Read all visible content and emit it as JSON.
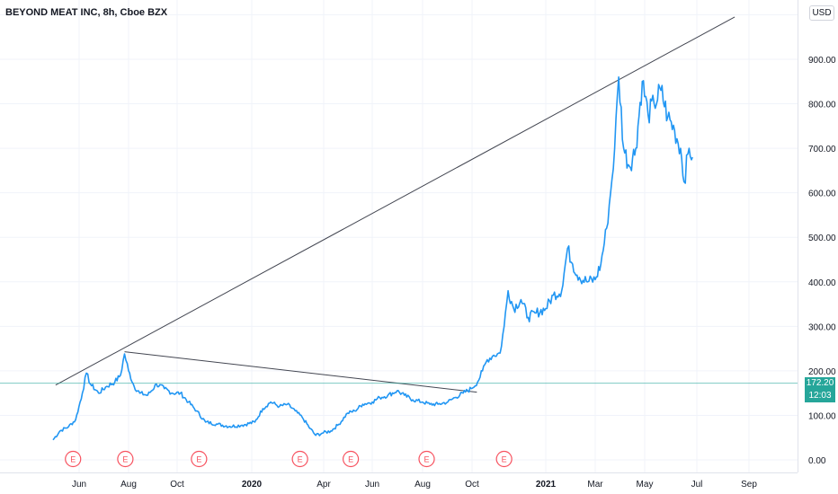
{
  "header": {
    "title": "BEYOND MEAT INC, 8h, Cboe BZX",
    "currency_button": "USD"
  },
  "price_labels": {
    "current_price": "172.20",
    "countdown": "12:03"
  },
  "colors": {
    "price_line": "#2196f3",
    "trendline": "#434651",
    "current_price_line": "#26a69a",
    "earnings_marker": "#f7525f",
    "grid": "#f0f3fa"
  },
  "chart_data": {
    "type": "line",
    "title": "BEYOND MEAT INC, 8h, Cboe BZX",
    "xlabel": "",
    "ylabel": "",
    "ylim": [
      0,
      1000
    ],
    "y_ticks": [
      "900.00",
      "800.00",
      "700.00",
      "600.00",
      "500.00",
      "400.00",
      "300.00",
      "200.00",
      "100.00",
      "0.00"
    ],
    "x_ticks": [
      {
        "label": "Jun",
        "date": "2019-06-01",
        "bold": false
      },
      {
        "label": "Aug",
        "date": "2019-08-01",
        "bold": false
      },
      {
        "label": "Oct",
        "date": "2019-10-01",
        "bold": false
      },
      {
        "label": "2020",
        "date": "2020-01-01",
        "bold": true
      },
      {
        "label": "Apr",
        "date": "2020-04-01",
        "bold": false
      },
      {
        "label": "Jun",
        "date": "2020-06-01",
        "bold": false
      },
      {
        "label": "Aug",
        "date": "2020-08-01",
        "bold": false
      },
      {
        "label": "Oct",
        "date": "2020-10-01",
        "bold": false
      },
      {
        "label": "2021",
        "date": "2021-01-01",
        "bold": true
      },
      {
        "label": "Mar",
        "date": "2021-03-01",
        "bold": false
      },
      {
        "label": "May",
        "date": "2021-05-01",
        "bold": false
      },
      {
        "label": "Jul",
        "date": "2021-07-01",
        "bold": false
      },
      {
        "label": "Sep",
        "date": "2021-09-01",
        "bold": false
      }
    ],
    "series": [
      {
        "values": [
          [
            "2019-05-02",
            45
          ],
          [
            "2019-05-10",
            65
          ],
          [
            "2019-05-20",
            75
          ],
          [
            "2019-05-28",
            90
          ],
          [
            "2019-06-05",
            150
          ],
          [
            "2019-06-10",
            195
          ],
          [
            "2019-06-15",
            170
          ],
          [
            "2019-06-25",
            150
          ],
          [
            "2019-07-05",
            165
          ],
          [
            "2019-07-15",
            175
          ],
          [
            "2019-07-22",
            190
          ],
          [
            "2019-07-27",
            238
          ],
          [
            "2019-08-01",
            200
          ],
          [
            "2019-08-08",
            165
          ],
          [
            "2019-08-15",
            150
          ],
          [
            "2019-08-25",
            145
          ],
          [
            "2019-09-05",
            170
          ],
          [
            "2019-09-15",
            160
          ],
          [
            "2019-09-25",
            150
          ],
          [
            "2019-10-05",
            150
          ],
          [
            "2019-10-15",
            130
          ],
          [
            "2019-10-25",
            110
          ],
          [
            "2019-11-05",
            85
          ],
          [
            "2019-11-20",
            80
          ],
          [
            "2019-12-05",
            75
          ],
          [
            "2019-12-20",
            78
          ],
          [
            "2020-01-05",
            85
          ],
          [
            "2020-01-15",
            115
          ],
          [
            "2020-01-25",
            130
          ],
          [
            "2020-02-05",
            120
          ],
          [
            "2020-02-15",
            125
          ],
          [
            "2020-02-25",
            110
          ],
          [
            "2020-03-05",
            95
          ],
          [
            "2020-03-15",
            70
          ],
          [
            "2020-03-22",
            55
          ],
          [
            "2020-03-30",
            60
          ],
          [
            "2020-04-10",
            65
          ],
          [
            "2020-04-20",
            80
          ],
          [
            "2020-05-01",
            105
          ],
          [
            "2020-05-10",
            110
          ],
          [
            "2020-05-20",
            125
          ],
          [
            "2020-06-01",
            130
          ],
          [
            "2020-06-10",
            140
          ],
          [
            "2020-06-20",
            145
          ],
          [
            "2020-07-01",
            155
          ],
          [
            "2020-07-10",
            145
          ],
          [
            "2020-07-20",
            135
          ],
          [
            "2020-08-01",
            130
          ],
          [
            "2020-08-10",
            125
          ],
          [
            "2020-08-20",
            125
          ],
          [
            "2020-09-01",
            130
          ],
          [
            "2020-09-10",
            140
          ],
          [
            "2020-09-20",
            150
          ],
          [
            "2020-09-30",
            160
          ],
          [
            "2020-10-08",
            175
          ],
          [
            "2020-10-14",
            200
          ],
          [
            "2020-10-20",
            225
          ],
          [
            "2020-10-28",
            235
          ],
          [
            "2020-11-05",
            240
          ],
          [
            "2020-11-10",
            300
          ],
          [
            "2020-11-15",
            380
          ],
          [
            "2020-11-22",
            340
          ],
          [
            "2020-12-01",
            360
          ],
          [
            "2020-12-10",
            320
          ],
          [
            "2020-12-20",
            330
          ],
          [
            "2021-01-01",
            340
          ],
          [
            "2021-01-10",
            370
          ],
          [
            "2021-01-20",
            380
          ],
          [
            "2021-01-27",
            475
          ],
          [
            "2021-02-02",
            440
          ],
          [
            "2021-02-10",
            410
          ],
          [
            "2021-02-20",
            400
          ],
          [
            "2021-03-01",
            405
          ],
          [
            "2021-03-08",
            440
          ],
          [
            "2021-03-15",
            520
          ],
          [
            "2021-03-20",
            600
          ],
          [
            "2021-03-25",
            700
          ],
          [
            "2021-03-30",
            860
          ],
          [
            "2021-04-05",
            700
          ],
          [
            "2021-04-12",
            660
          ],
          [
            "2021-04-20",
            700
          ],
          [
            "2021-04-28",
            850
          ],
          [
            "2021-05-05",
            775
          ],
          [
            "2021-05-12",
            800
          ],
          [
            "2021-05-20",
            830
          ],
          [
            "2021-05-28",
            770
          ],
          [
            "2021-06-05",
            740
          ],
          [
            "2021-06-12",
            700
          ],
          [
            "2021-06-16",
            625
          ],
          [
            "2021-06-22",
            700
          ],
          [
            "2021-06-26",
            680
          ]
        ]
      }
    ],
    "trendlines": [
      {
        "from": [
          "2019-05-05",
          168
        ],
        "to": [
          "2021-08-15",
          995
        ]
      },
      {
        "from": [
          "2019-07-27",
          243
        ],
        "to": [
          "2020-10-07",
          152
        ]
      }
    ],
    "current_price": 172.2,
    "earnings_markers": [
      "2019-05-25",
      "2019-07-28",
      "2019-10-28",
      "2020-03-02",
      "2020-05-05",
      "2020-08-06",
      "2020-11-10"
    ],
    "earnings_label": "E",
    "grid": true,
    "legend": "none"
  }
}
